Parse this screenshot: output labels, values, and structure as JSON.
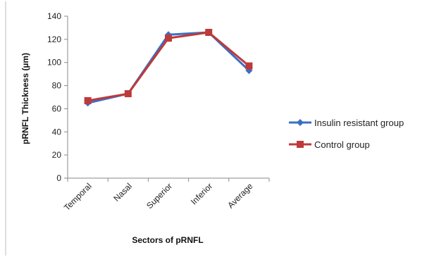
{
  "chart_data": {
    "type": "line",
    "title": "",
    "xlabel": "Sectors of pRNFL",
    "ylabel": "pRNFL Thickness (µm)",
    "categories": [
      "Temporal",
      "Nasal",
      "Superior",
      "Inferior",
      "Average"
    ],
    "ylim": [
      0,
      140
    ],
    "yticks": [
      0,
      20,
      40,
      60,
      80,
      100,
      120,
      140
    ],
    "grid": false,
    "legend_position": "right",
    "series": [
      {
        "name": "Insulin resistant group",
        "values": [
          65,
          73,
          124,
          126,
          93
        ],
        "color": "#3a6fc4",
        "marker": "diamond"
      },
      {
        "name": "Control group",
        "values": [
          67,
          73,
          121,
          126,
          97
        ],
        "color": "#be3a3a",
        "marker": "square"
      }
    ]
  }
}
